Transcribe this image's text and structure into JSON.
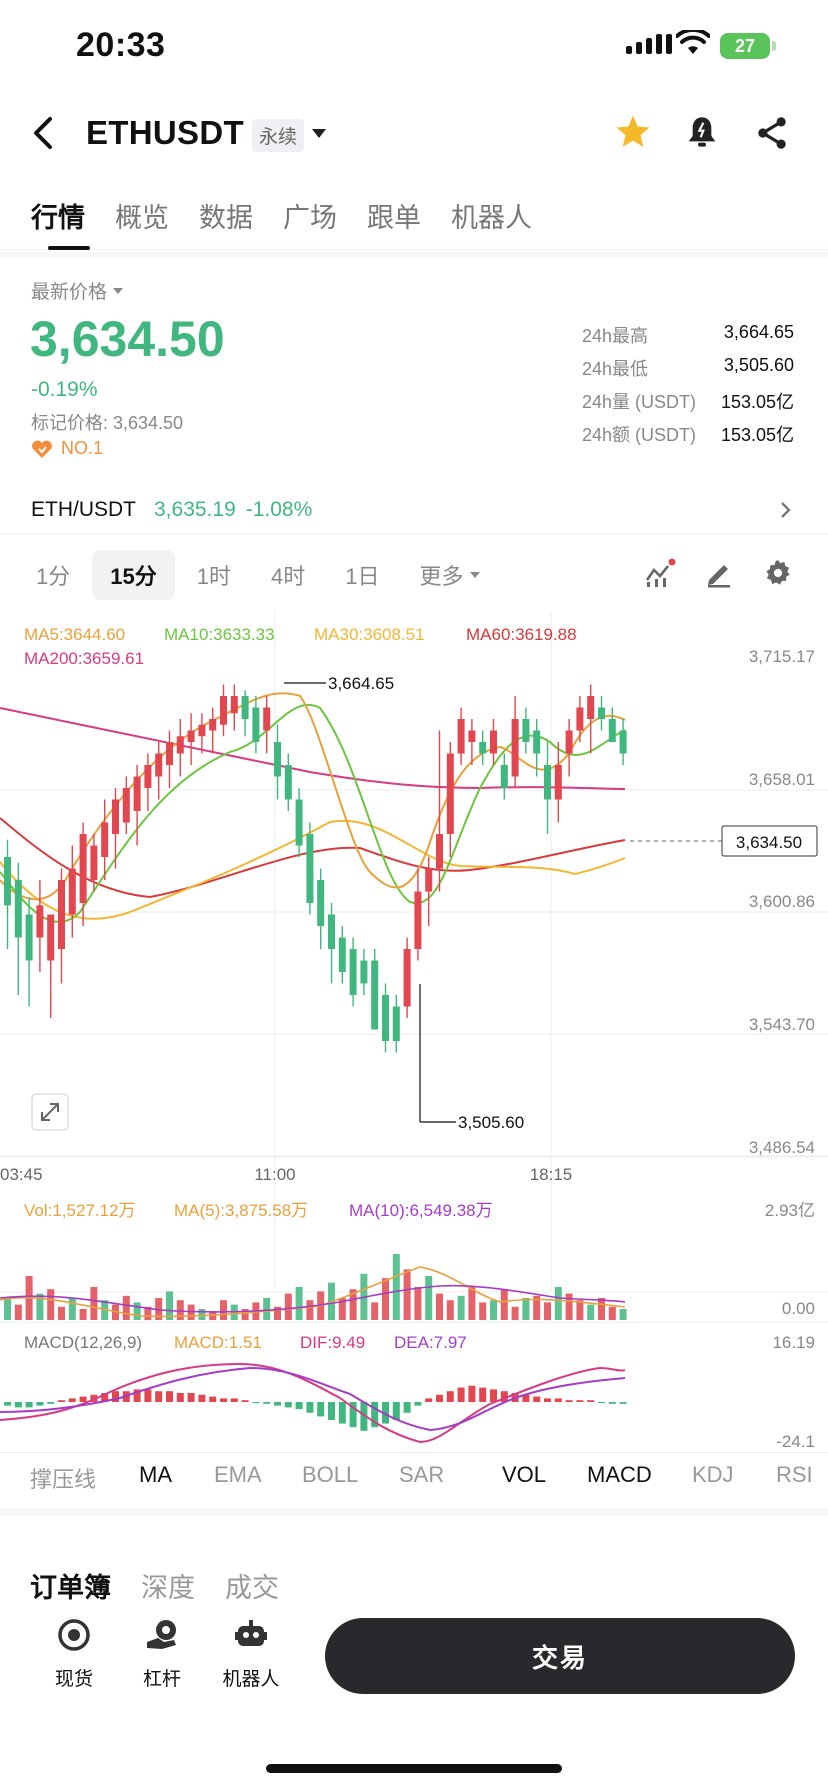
{
  "status_bar": {
    "time": "20:33",
    "battery": "27"
  },
  "header": {
    "pair": "ETHUSDT",
    "contract_type": "永续"
  },
  "tabs": [
    "行情",
    "概览",
    "数据",
    "广场",
    "跟单",
    "机器人"
  ],
  "price_section": {
    "label": "最新价格",
    "price": "3,634.50",
    "change": "-0.19%",
    "mark_price": "标记价格: 3,634.50",
    "rank": "NO.1",
    "stats": [
      {
        "label": "24h最高",
        "value": "3,664.65"
      },
      {
        "label": "24h最低",
        "value": "3,505.60"
      },
      {
        "label": "24h量 (USDT)",
        "value": "153.05亿"
      },
      {
        "label": "24h额 (USDT)",
        "value": "153.05亿"
      }
    ]
  },
  "spot_pair": {
    "name": "ETH/USDT",
    "price": "3,635.19",
    "change": "-1.08%"
  },
  "intervals": [
    "1分",
    "15分",
    "1时",
    "4时",
    "1日",
    "更多"
  ],
  "chart": {
    "ma": {
      "ma5": "MA5:3644.60",
      "ma10": "MA10:3633.33",
      "ma30": "MA30:3608.51",
      "ma60": "MA60:3619.88",
      "ma200": "MA200:3659.61"
    },
    "price_axis": [
      "3,715.17",
      "3,658.01",
      "3,600.86",
      "3,543.70",
      "3,486.54"
    ],
    "current_price_tag": "3,634.50",
    "high_label": "3,664.65",
    "low_label": "3,505.60",
    "time_axis": [
      "03:45",
      "11:00",
      "18:15"
    ],
    "volume": {
      "vol": "Vol:1,527.12万",
      "ma5": "MA(5):3,875.58万",
      "ma10": "MA(10):6,549.38万",
      "axis_top": "2.93亿",
      "axis_bottom": "0.00"
    },
    "macd": {
      "label": "MACD(12,26,9)",
      "macd": "MACD:1.51",
      "dif": "DIF:9.49",
      "dea": "DEA:7.97",
      "axis_top": "16.19",
      "axis_bottom": "-24.1"
    },
    "colors": {
      "up": "#e2464f",
      "down": "#3fb77e",
      "ma5": "#e8a13a",
      "ma10": "#6cc53d",
      "ma30": "#f2b632",
      "ma60": "#d8393a",
      "ma200": "#d63a86"
    }
  },
  "indicator_bar": [
    "撑压线",
    "MA",
    "EMA",
    "BOLL",
    "SAR",
    "VOL",
    "MACD",
    "KDJ",
    "RSI"
  ],
  "orderbook_tabs": [
    "订单簿",
    "深度",
    "成交"
  ],
  "bottom_nav": {
    "spot": "现货",
    "leverage": "杠杆",
    "bot": "机器人",
    "trade": "交易"
  }
}
